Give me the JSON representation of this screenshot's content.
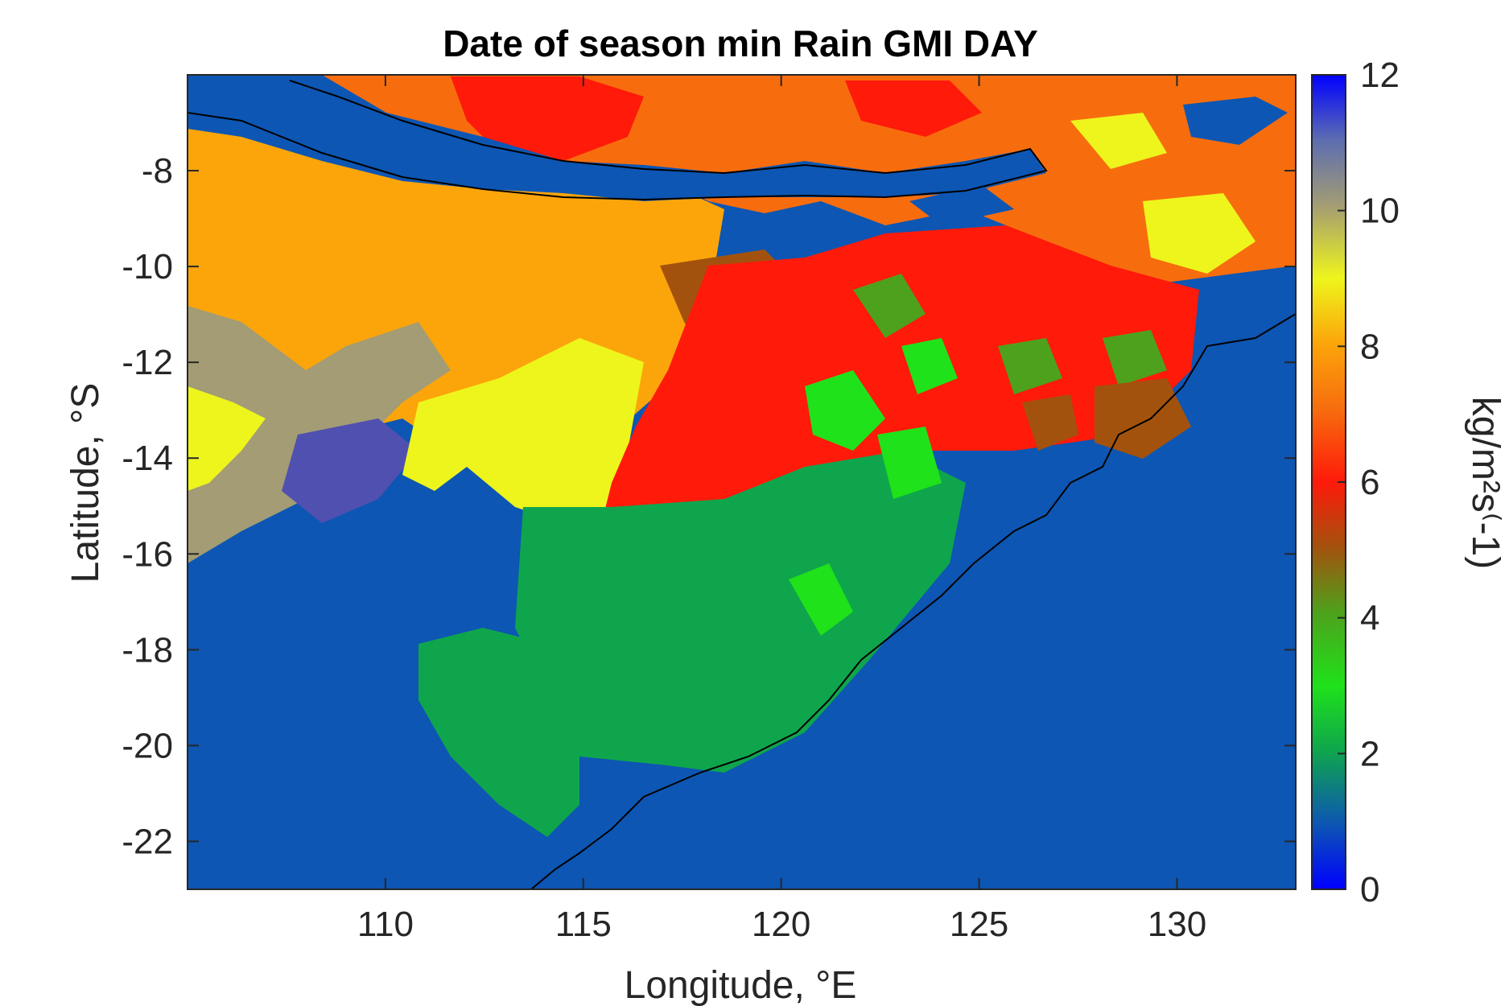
{
  "chart_data": {
    "type": "heatmap",
    "title": "Date of season min Rain GMI DAY",
    "xlabel": "Longitude, °E",
    "ylabel": "Latitude, °S",
    "colorbar_label": "kg/m²s⁽-1)",
    "xlim": [
      105,
      133
    ],
    "ylim": [
      -23,
      -6
    ],
    "x_ticks": [
      110,
      115,
      120,
      125,
      130
    ],
    "y_ticks": [
      -8,
      -10,
      -12,
      -14,
      -16,
      -18,
      -20,
      -22
    ],
    "colorbar_range": [
      0,
      12
    ],
    "colorbar_ticks": [
      0,
      2,
      4,
      6,
      8,
      10,
      12
    ],
    "colors": {
      "ocean": "#0d56b3",
      "v2": "#0fa54d",
      "v3": "#1fe21a",
      "v4": "#4ea11c",
      "v5": "#a3520d",
      "v6": "#ff1a0a",
      "v7": "#f76d0e",
      "v8": "#fca50a",
      "v9": "#eef51c",
      "v10": "#a39c74",
      "v11": "#5050b0",
      "coast": "#000000"
    },
    "regions": [
      {
        "name": "ocean-background",
        "value": 1
      },
      {
        "name": "north-band-orange",
        "value": 8
      },
      {
        "name": "north-band-red",
        "value": 6
      },
      {
        "name": "west-orange",
        "value": 8
      },
      {
        "name": "west-gray",
        "value": 10
      },
      {
        "name": "west-yellow",
        "value": 9
      },
      {
        "name": "west-purple",
        "value": 11
      },
      {
        "name": "central-yellow-belt",
        "value": 9
      },
      {
        "name": "central-brown",
        "value": 5
      },
      {
        "name": "central-red",
        "value": 6
      },
      {
        "name": "east-red",
        "value": 6
      },
      {
        "name": "east-brown",
        "value": 5
      },
      {
        "name": "south-green",
        "value": 2
      },
      {
        "name": "bright-green-patches",
        "value": 3
      },
      {
        "name": "olive-patches",
        "value": 4
      },
      {
        "name": "ne-yellow",
        "value": 9
      },
      {
        "name": "ne-orange",
        "value": 8
      }
    ]
  }
}
